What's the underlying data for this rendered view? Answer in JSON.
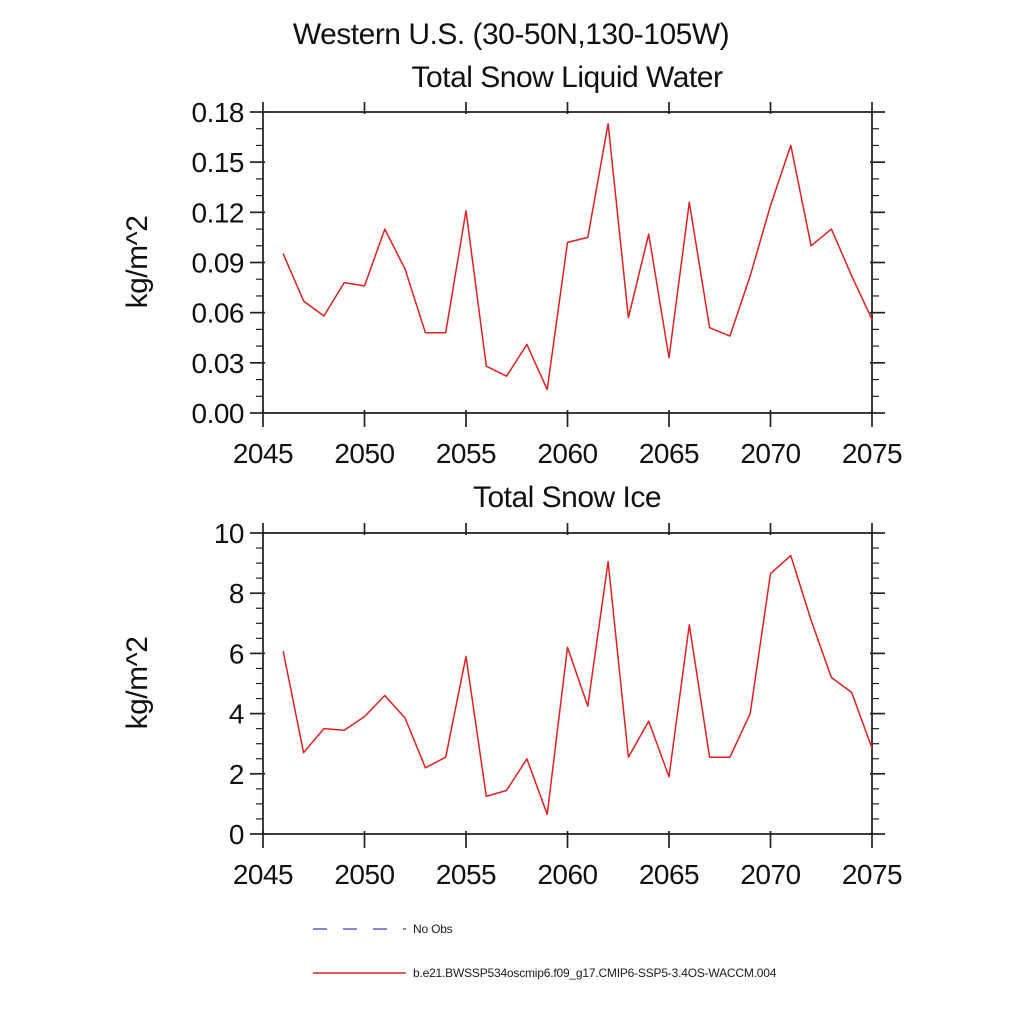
{
  "header": {
    "title": "Western U.S. (30-50N,130-105W)"
  },
  "chart_data": [
    {
      "type": "line",
      "title": "Total Snow Liquid Water",
      "xlabel": "",
      "ylabel": "kg/m^2",
      "xlim": [
        2045,
        2075
      ],
      "ylim": [
        0,
        0.18
      ],
      "xticks": [
        2045,
        2050,
        2055,
        2060,
        2065,
        2070,
        2075
      ],
      "yticks": [
        0,
        0.03,
        0.06,
        0.09,
        0.12,
        0.15,
        0.18
      ],
      "ytick_labels": [
        "0.00",
        "0.03",
        "0.06",
        "0.09",
        "0.12",
        "0.15",
        "0.18"
      ],
      "y_minor_step": 0.01,
      "grid": false,
      "legend_position": "none",
      "x": [
        2046,
        2047,
        2048,
        2049,
        2050,
        2051,
        2052,
        2053,
        2054,
        2055,
        2056,
        2057,
        2058,
        2059,
        2060,
        2061,
        2062,
        2063,
        2064,
        2065,
        2066,
        2067,
        2068,
        2069,
        2070,
        2071,
        2072,
        2073,
        2074,
        2075
      ],
      "series": [
        {
          "name": "b.e21.BWSSP534oscmip6.f09_g17.CMIP6-SSP5-3.4OS-WACCM.004",
          "color": "#e02020",
          "values": [
            0.095,
            0.067,
            0.058,
            0.078,
            0.076,
            0.11,
            0.086,
            0.048,
            0.048,
            0.121,
            0.028,
            0.022,
            0.041,
            0.014,
            0.102,
            0.105,
            0.173,
            0.057,
            0.107,
            0.033,
            0.126,
            0.051,
            0.046,
            0.082,
            0.124,
            0.16,
            0.1,
            0.11,
            0.082,
            0.056
          ]
        }
      ]
    },
    {
      "type": "line",
      "title": "Total Snow Ice",
      "xlabel": "",
      "ylabel": "kg/m^2",
      "xlim": [
        2045,
        2075
      ],
      "ylim": [
        0,
        10
      ],
      "xticks": [
        2045,
        2050,
        2055,
        2060,
        2065,
        2070,
        2075
      ],
      "yticks": [
        0,
        2,
        4,
        6,
        8,
        10
      ],
      "ytick_labels": [
        "0",
        "2",
        "4",
        "6",
        "8",
        "10"
      ],
      "y_minor_step": 0.5,
      "grid": false,
      "legend_position": "none",
      "x": [
        2046,
        2047,
        2048,
        2049,
        2050,
        2051,
        2052,
        2053,
        2054,
        2055,
        2056,
        2057,
        2058,
        2059,
        2060,
        2061,
        2062,
        2063,
        2064,
        2065,
        2066,
        2067,
        2068,
        2069,
        2070,
        2071,
        2072,
        2073,
        2074,
        2075
      ],
      "series": [
        {
          "name": "b.e21.BWSSP534oscmip6.f09_g17.CMIP6-SSP5-3.4OS-WACCM.004",
          "color": "#e02020",
          "values": [
            6.05,
            2.7,
            3.5,
            3.45,
            3.9,
            4.6,
            3.85,
            2.2,
            2.55,
            5.9,
            1.25,
            1.45,
            2.5,
            0.65,
            6.2,
            4.25,
            9.05,
            2.55,
            3.75,
            1.9,
            6.95,
            2.55,
            2.55,
            4.0,
            8.65,
            9.25,
            7.1,
            5.2,
            4.7,
            2.85
          ]
        }
      ]
    }
  ],
  "legend": {
    "items": [
      {
        "label": "No Obs",
        "style": "dashed",
        "color": "#6060cf"
      },
      {
        "label": "b.e21.BWSSP534oscmip6.f09_g17.CMIP6-SSP5-3.4OS-WACCM.004",
        "style": "solid",
        "color": "#e02020"
      }
    ]
  },
  "colors": {
    "line_red": "#e02020",
    "no_obs_blue": "#6060cf",
    "axis": "#3c3c3c",
    "text": "#111111"
  }
}
